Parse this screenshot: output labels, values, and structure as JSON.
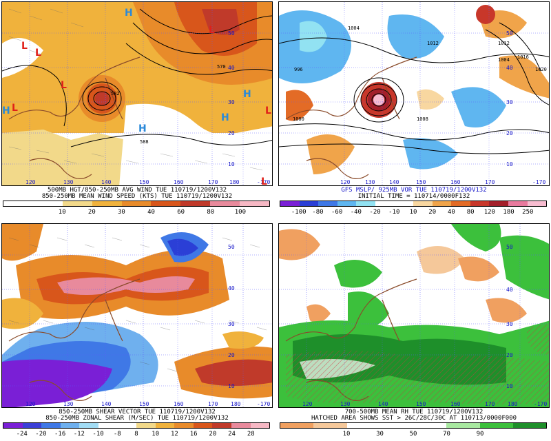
{
  "panels": [
    {
      "caption_line1": "500MB HGT/850-250MB AVG WIND TUE 110719/1200V132",
      "caption_line2": "850-250MB MEAN WIND SPEED (KTS) TUE 110719/1200V132",
      "colorbar": [
        "#ffffff",
        "#ffffff",
        "#f2d98a",
        "#f0b23c",
        "#e88b2a",
        "#d8561b",
        "#c03a2a",
        "#e88a9c",
        "#f6b8c4"
      ],
      "ticks": [
        "10",
        "20",
        "30",
        "40",
        "60",
        "80",
        "100"
      ],
      "lon_labels": [
        "120",
        "130",
        "140",
        "150",
        "160",
        "170",
        "180",
        "-170"
      ],
      "lat_labels": [
        "50",
        "40",
        "30",
        "20",
        "10"
      ],
      "contour_labels": [
        "570",
        "582",
        "588"
      ],
      "markers": {
        "L": "L",
        "H": "H"
      }
    },
    {
      "caption_line1": "GFS MSLP/ 925MB VOR TUE 110719/1200V132",
      "caption_line2": "INITIAL TIME = 110714/0000F132",
      "colorbar": [
        "#7a1fd6",
        "#2b3fd6",
        "#3f78e6",
        "#5fb6f0",
        "#92e2f2",
        "#ffffff",
        "#ffffff",
        "#f8d7a0",
        "#f0a44a",
        "#e36b26",
        "#c8372a",
        "#a31f2a",
        "#e87a9e",
        "#f7bcd0"
      ],
      "ticks": [
        "-100",
        "-80",
        "-60",
        "-40",
        "-20",
        "-10",
        "10",
        "20",
        "40",
        "80",
        "120",
        "180",
        "250"
      ],
      "lon_labels": [
        "120",
        "130",
        "140",
        "150",
        "160",
        "170",
        "-170"
      ],
      "lat_labels": [
        "50",
        "40",
        "30",
        "20",
        "10"
      ],
      "contour_labels": [
        "1004",
        "1012",
        "1008",
        "996",
        "1000",
        "1016",
        "1020",
        "1004",
        "1012"
      ]
    },
    {
      "caption_line1": "850-250MB SHEAR VECTOR TUE 110719/1200V132",
      "caption_line2": "850-250MB ZONAL SHEAR (M/SEC) TUE 110719/1200V132",
      "colorbar": [
        "#7a1fd6",
        "#3b3fd6",
        "#3f78e6",
        "#6fb0ee",
        "#a2dcf4",
        "#ffffff",
        "#ffffff",
        "#f2d98a",
        "#f0b23c",
        "#e88b2a",
        "#d8561b",
        "#c03a2a",
        "#e88a9c",
        "#f6b8c4"
      ],
      "ticks": [
        "-24",
        "-20",
        "-16",
        "-12",
        "-10",
        "-8",
        "8",
        "10",
        "12",
        "16",
        "20",
        "24",
        "28"
      ],
      "lon_labels": [
        "120",
        "130",
        "140",
        "150",
        "160",
        "170",
        "180",
        "-170"
      ],
      "lat_labels": [
        "50",
        "40",
        "30",
        "20",
        "10"
      ]
    },
    {
      "caption_line1": "700-500MB MEAN RH TUE 110719/1200V132",
      "caption_line2": "HATCHED AREA SHOWS SST > 26C/28C/30C AT 110713/0000F000",
      "colorbar": [
        "#f0a060",
        "#f5c89a",
        "#ffffff",
        "#ffffff",
        "#ffffff",
        "#a8e8a0",
        "#3cc03c",
        "#1e8f2a"
      ],
      "ticks": [
        "10",
        "30",
        "50",
        "70",
        "90"
      ],
      "lon_labels": [
        "120",
        "130",
        "140",
        "150",
        "160",
        "170",
        "180",
        "-170"
      ],
      "lat_labels": [
        "50",
        "40",
        "30",
        "20",
        "10"
      ]
    }
  ]
}
